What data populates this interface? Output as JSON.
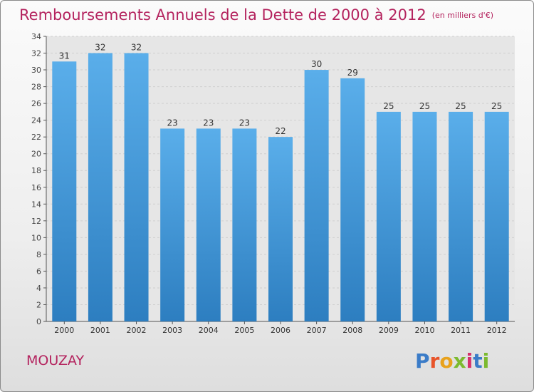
{
  "chart_data": {
    "type": "bar",
    "title": "Remboursements Annuels de la Dette de 2000 à 2012",
    "subtitle": "(en milliers d'€)",
    "categories": [
      "2000",
      "2001",
      "2002",
      "2003",
      "2004",
      "2005",
      "2006",
      "2007",
      "2008",
      "2009",
      "2010",
      "2011",
      "2012"
    ],
    "values": [
      31,
      32,
      32,
      23,
      23,
      23,
      22,
      30,
      29,
      25,
      25,
      25,
      25
    ],
    "ylim": [
      0,
      34
    ],
    "yticks": [
      0,
      2,
      4,
      6,
      8,
      10,
      12,
      14,
      16,
      18,
      20,
      22,
      24,
      26,
      28,
      30,
      32,
      34
    ],
    "grid": true,
    "bar_color_top": "#5aaeea",
    "bar_color_bottom": "#2d7ec0"
  },
  "place_name": "MOUZAY",
  "logo": {
    "text": "Proxiti",
    "letters": [
      "P",
      "r",
      "o",
      "x",
      "i",
      "t",
      "i"
    ],
    "colors": [
      "#3b7cc8",
      "#e8542a",
      "#e8a21d",
      "#7cba2f",
      "#d6306b",
      "#3b7cc8",
      "#7cba2f"
    ]
  }
}
